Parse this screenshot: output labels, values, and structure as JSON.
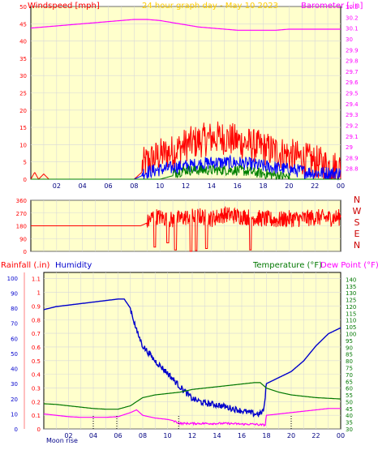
{
  "colors": {
    "background": "#ffffff",
    "plot_bg": "#ffffcc",
    "grid": "#d8d8d8",
    "windspeed": "#ff0000",
    "wind_avg": "#0000ff",
    "wind_green": "#008000",
    "barometer": "#ff00ff",
    "direction": "#ff0000",
    "humidity": "#0000cc",
    "temperature": "#007700",
    "dew_point": "#ff00ff",
    "title": "#ffcc00",
    "axis_red": "#ff0000",
    "axis_pink": "#ff00ff",
    "axis_blue": "#0000cc",
    "axis_green": "#007700",
    "compass": "#cc0000",
    "moon": "#000088"
  },
  "header": {
    "title": "24 hour graph day - May 10 2023"
  },
  "x_tick_labels": [
    "02",
    "04",
    "06",
    "08",
    "10",
    "12",
    "14",
    "16",
    "18",
    "20",
    "22",
    "00"
  ],
  "chart_data": [
    {
      "type": "line",
      "name": "wind-barometer",
      "left_axis_label": "Windspeed [mph]",
      "right_axis_label": "Barometer [.in]",
      "left_ylim": [
        0,
        50
      ],
      "left_ticks": [
        "0",
        "5",
        "10",
        "15",
        "20",
        "25",
        "30",
        "35",
        "40",
        "45",
        "50"
      ],
      "right_ylim": [
        28.7,
        30.3
      ],
      "right_ticks": [
        "28.8",
        "28.9",
        "29",
        "29.1",
        "29.2",
        "29.3",
        "29.4",
        "29.5",
        "29.6",
        "29.7",
        "29.8",
        "29.9",
        "30",
        "30.1",
        "30.2",
        "30.3"
      ],
      "x_label_values": [
        2,
        4,
        6,
        8,
        10,
        12,
        14,
        16,
        18,
        20,
        22,
        24
      ],
      "series": [
        {
          "axis": "right",
          "color_key": "barometer",
          "x": [
            0,
            1,
            2,
            3,
            4,
            5,
            6,
            7,
            8,
            9,
            10,
            11,
            12,
            13,
            14,
            15,
            16,
            17,
            18,
            19,
            20,
            21,
            22,
            23,
            24
          ],
          "y": [
            30.1,
            30.11,
            30.12,
            30.13,
            30.14,
            30.15,
            30.16,
            30.17,
            30.18,
            30.18,
            30.17,
            30.15,
            30.13,
            30.11,
            30.1,
            30.09,
            30.08,
            30.08,
            30.08,
            30.08,
            30.09,
            30.09,
            30.09,
            30.09,
            30.09
          ]
        },
        {
          "axis": "left",
          "color_key": "windspeed",
          "x": [
            0,
            0.3,
            0.6,
            1.0,
            1.4,
            2,
            4,
            6,
            8,
            8.6,
            9,
            10,
            11,
            12,
            13,
            14,
            15,
            16,
            17,
            18,
            19,
            20,
            21,
            22,
            23,
            24
          ],
          "y": [
            0,
            2,
            0,
            1.5,
            0,
            0,
            0,
            0,
            0,
            2,
            3,
            5,
            6,
            8,
            9,
            10,
            10,
            9,
            8,
            7,
            6,
            5,
            4,
            3,
            2,
            1
          ],
          "noise": {
            "from": 8.6,
            "to": 24,
            "amp": 5
          }
        },
        {
          "axis": "left",
          "color_key": "wind_avg",
          "x": [
            0,
            8,
            8.6,
            10,
            12,
            14,
            16,
            18,
            20,
            22,
            24
          ],
          "y": [
            0,
            0,
            1,
            2,
            3,
            4,
            4,
            3,
            2,
            1,
            1
          ],
          "noise": {
            "from": 8.6,
            "to": 24,
            "amp": 2
          }
        },
        {
          "axis": "left",
          "color_key": "wind_green",
          "x": [
            0,
            10,
            11,
            12,
            14,
            16,
            18,
            20,
            24
          ],
          "y": [
            0,
            0,
            1,
            2,
            2,
            2,
            1,
            0,
            0
          ],
          "noise": {
            "from": 11,
            "to": 20,
            "amp": 1.5
          }
        }
      ]
    },
    {
      "type": "line",
      "name": "wind-direction",
      "ylim": [
        0,
        360
      ],
      "left_ticks": [
        "0",
        "90",
        "180",
        "270",
        "360"
      ],
      "compass": [
        "N",
        "W",
        "S",
        "E",
        "N"
      ],
      "series": [
        {
          "color_key": "direction",
          "x": [
            0,
            8.5,
            9.0,
            9.5,
            10,
            11,
            12,
            13,
            14,
            15,
            16,
            17,
            18,
            19,
            20,
            21,
            22,
            23,
            24
          ],
          "y": [
            180,
            180,
            200,
            250,
            240,
            220,
            240,
            250,
            230,
            260,
            250,
            240,
            230,
            220,
            230,
            230,
            240,
            235,
            240
          ],
          "noise": {
            "from": 9,
            "to": 24,
            "amp": 60
          },
          "drops": [
            [
              9.6,
              30
            ],
            [
              10.6,
              60
            ],
            [
              11.2,
              10
            ],
            [
              12.4,
              0
            ],
            [
              12.8,
              5
            ],
            [
              13.6,
              20
            ],
            [
              17.0,
              10
            ]
          ]
        }
      ]
    },
    {
      "type": "line",
      "name": "rain-humidity-temperature",
      "labels": {
        "rainfall": "Rainfall (.in)",
        "humidity": "Humidity",
        "temperature": "Temperature (°F)",
        "dew_point": "Dew Point (°F)"
      },
      "rain_ticks": [
        "0",
        "0.1",
        "0.2",
        "0.3",
        "0.4",
        "0.5",
        "0.6",
        "0.7",
        "0.8",
        "0.9",
        "1",
        "1.1"
      ],
      "humidity_ticks": [
        "0",
        "10",
        "20",
        "30",
        "40",
        "50",
        "60",
        "70",
        "80",
        "90",
        "100"
      ],
      "temp_ticks": [
        "30",
        "35",
        "40",
        "45",
        "50",
        "55",
        "60",
        "65",
        "70",
        "75",
        "80",
        "85",
        "90",
        "95",
        "100",
        "105",
        "110",
        "115",
        "120",
        "125",
        "130",
        "135",
        "140"
      ],
      "humidity_ylim": [
        0,
        100
      ],
      "temp_ylim": [
        30,
        145
      ],
      "series": [
        {
          "axis": "humidity",
          "color_key": "humidity",
          "x": [
            0,
            1,
            2,
            3,
            4,
            5,
            6,
            6.5,
            7,
            7.5,
            8,
            9,
            10,
            11,
            12,
            13,
            14,
            15,
            16,
            17,
            17.5,
            17.8,
            18,
            19,
            20,
            21,
            22,
            23,
            24
          ],
          "y": [
            79,
            81,
            82,
            83,
            84,
            85,
            86,
            86,
            80,
            65,
            55,
            45,
            37,
            28,
            20,
            17,
            16,
            14,
            12,
            10,
            10,
            13,
            30,
            34,
            38,
            45,
            55,
            63,
            67
          ]
        },
        {
          "axis": "temp",
          "color_key": "temperature",
          "x": [
            0,
            1,
            2,
            3,
            4,
            5,
            6,
            7,
            8,
            9,
            10,
            11,
            12,
            13,
            14,
            15,
            16,
            17,
            17.5,
            18,
            19,
            20,
            21,
            22,
            23,
            24
          ],
          "y": [
            48.5,
            48,
            47,
            46,
            45,
            44.5,
            44.5,
            47,
            53,
            55,
            56,
            57,
            59,
            60,
            61,
            62,
            63,
            64,
            64,
            60,
            57,
            55,
            54,
            53,
            52.5,
            52
          ]
        },
        {
          "axis": "temp",
          "color_key": "dew_point",
          "x": [
            0,
            1,
            2,
            3,
            4,
            5,
            6,
            7,
            7.5,
            8,
            9,
            10,
            10.5,
            11,
            12,
            13,
            14,
            15,
            16,
            17,
            17.5,
            17.9,
            18,
            19,
            20,
            21,
            22,
            23,
            24
          ],
          "y": [
            41,
            40,
            39,
            38.5,
            38.5,
            38.5,
            39,
            42,
            44,
            40,
            38,
            37,
            36,
            34,
            34,
            34,
            34,
            34,
            33.5,
            33.5,
            33,
            33,
            40,
            41,
            42,
            43,
            44,
            45,
            45
          ]
        }
      ],
      "markers_x": [
        4.0,
        5.9,
        10.9,
        20
      ]
    }
  ],
  "footer": {
    "moon_label": "Moon rise"
  }
}
